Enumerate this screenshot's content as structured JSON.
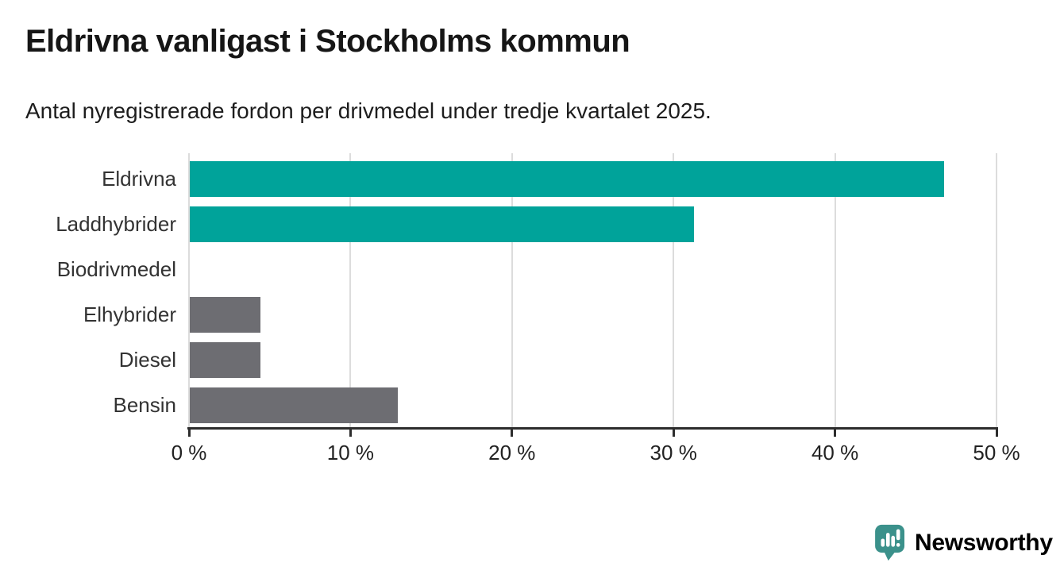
{
  "header": {
    "title": "Eldrivna vanligast i Stockholms kommun",
    "subtitle": "Antal nyregistrerade fordon per drivmedel under tredje kvartalet 2025."
  },
  "chart_data": {
    "type": "bar",
    "orientation": "horizontal",
    "categories": [
      "Eldrivna",
      "Laddhybrider",
      "Biodrivmedel",
      "Elhybrider",
      "Diesel",
      "Bensin"
    ],
    "values": [
      46.7,
      31.2,
      0,
      4.4,
      4.4,
      12.9
    ],
    "bar_colors": [
      "#00a39a",
      "#00a39a",
      "#6d6d72",
      "#6d6d72",
      "#6d6d72",
      "#6d6d72"
    ],
    "title": "Eldrivna vanligast i Stockholms kommun",
    "xlabel": "",
    "ylabel": "",
    "xlim": [
      0,
      50
    ],
    "x_ticks": [
      0,
      10,
      20,
      30,
      40,
      50
    ],
    "x_tick_labels": [
      "0 %",
      "10 %",
      "20 %",
      "30 %",
      "40 %",
      "50 %"
    ],
    "grid": "vertical-only",
    "legend": "none",
    "unit": "percent"
  },
  "colors": {
    "accent_teal": "#00a39a",
    "neutral_gray": "#6d6d72",
    "gridline": "#dcdcdc",
    "axis": "#2d2d2d",
    "brand_teal": "#3b918b"
  },
  "branding": {
    "logo_label": "Newsworthy",
    "logo_icon": "newsworthy-chart-bubble-icon"
  }
}
